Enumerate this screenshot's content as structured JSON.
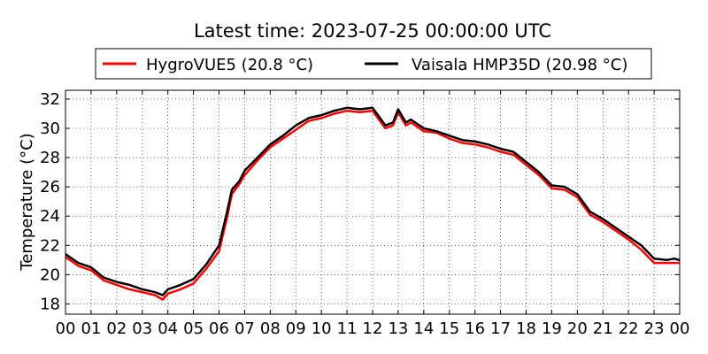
{
  "chart_data": {
    "type": "line",
    "title": "Latest time: 2023-07-25 00:00:00 UTC",
    "xlabel": "",
    "ylabel": "Temperature (°C)",
    "x_ticks": [
      "00",
      "01",
      "02",
      "03",
      "04",
      "05",
      "06",
      "07",
      "08",
      "09",
      "10",
      "11",
      "12",
      "13",
      "14",
      "15",
      "16",
      "17",
      "18",
      "19",
      "20",
      "21",
      "22",
      "23",
      "00"
    ],
    "y_ticks": [
      18,
      20,
      22,
      24,
      26,
      28,
      30,
      32
    ],
    "xlim": [
      0,
      24
    ],
    "ylim": [
      17.3,
      32.6
    ],
    "grid": "on, dotted",
    "legend_position": "top-center",
    "x": [
      0,
      0.5,
      1,
      1.5,
      2,
      2.5,
      3,
      3.5,
      3.8,
      4,
      4.5,
      5,
      5.5,
      6,
      6.3,
      6.5,
      6.8,
      7,
      7.5,
      8,
      8.5,
      9,
      9.5,
      10,
      10.5,
      11,
      11.5,
      12,
      12.5,
      12.8,
      13,
      13.3,
      13.5,
      14,
      14.5,
      15,
      15.5,
      16,
      16.5,
      17,
      17.5,
      18,
      18.5,
      19,
      19.5,
      20,
      20.5,
      21,
      21.5,
      22,
      22.5,
      23,
      23.5,
      23.8,
      24
    ],
    "series": [
      {
        "name": "HygroVUE5 (20.8 °C)",
        "color": "#ff0000",
        "values": [
          21.2,
          20.6,
          20.3,
          19.6,
          19.3,
          19.0,
          18.8,
          18.6,
          18.3,
          18.7,
          19.0,
          19.4,
          20.4,
          21.6,
          23.8,
          25.5,
          26.2,
          26.8,
          27.8,
          28.7,
          29.3,
          29.9,
          30.5,
          30.7,
          31.0,
          31.2,
          31.1,
          31.2,
          30.0,
          30.2,
          31.1,
          30.2,
          30.4,
          29.8,
          29.7,
          29.3,
          29.0,
          28.9,
          28.7,
          28.4,
          28.2,
          27.5,
          26.8,
          25.9,
          25.8,
          25.3,
          24.1,
          23.6,
          23.0,
          22.4,
          21.7,
          20.8,
          20.8,
          20.8,
          20.8
        ]
      },
      {
        "name": "Vaisala HMP35D (20.98 °C)",
        "color": "#000000",
        "values": [
          21.4,
          20.8,
          20.5,
          19.8,
          19.5,
          19.3,
          19.0,
          18.8,
          18.6,
          19.0,
          19.3,
          19.7,
          20.7,
          22.0,
          24.2,
          25.8,
          26.4,
          27.1,
          28.0,
          28.9,
          29.5,
          30.2,
          30.7,
          30.9,
          31.2,
          31.4,
          31.3,
          31.4,
          30.2,
          30.4,
          31.3,
          30.4,
          30.6,
          30.0,
          29.8,
          29.5,
          29.2,
          29.1,
          28.9,
          28.6,
          28.4,
          27.7,
          27.0,
          26.1,
          26.0,
          25.5,
          24.3,
          23.8,
          23.2,
          22.6,
          22.0,
          21.1,
          21.0,
          21.1,
          20.98
        ]
      }
    ]
  }
}
